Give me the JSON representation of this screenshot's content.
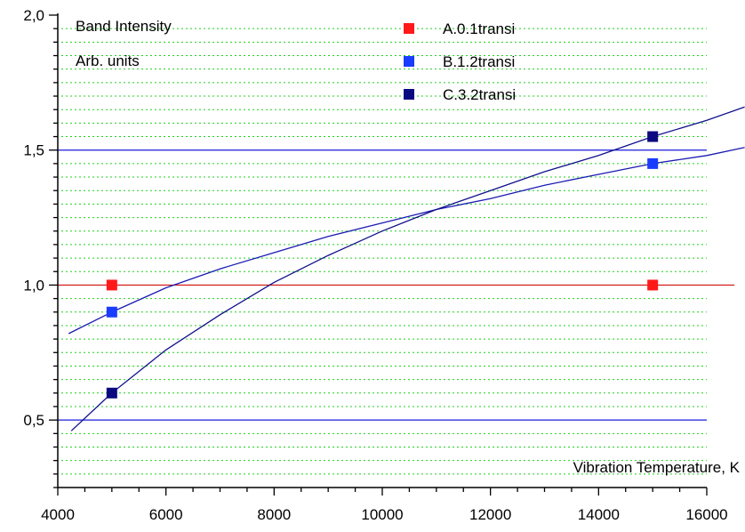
{
  "chart_data": {
    "type": "scatter",
    "xlim": [
      4000,
      16000
    ],
    "ylim": [
      0.25,
      2.0
    ],
    "x_ticks": [
      4000,
      6000,
      8000,
      10000,
      12000,
      14000,
      16000
    ],
    "x_tick_labels": [
      "4000",
      "6000",
      "8000",
      "10000",
      "12000",
      "14000",
      "16000"
    ],
    "y_ticks": [
      0.5,
      1.0,
      1.5,
      2.0
    ],
    "y_tick_labels": [
      "0,5",
      "1,0",
      "1,5",
      "2,0"
    ],
    "grid": "dotted green horizontal lines every 0.05",
    "legend_position": "top-center",
    "annotations": {
      "y_title_line1": "Band Intensity",
      "y_title_line2": "Arb. units",
      "x_title": "Vibration Temperature, K"
    },
    "reference_lines": [
      {
        "y": 0.5,
        "color": "#1a1adc"
      },
      {
        "y": 1.0,
        "color": "#d01010"
      },
      {
        "y": 1.5,
        "color": "#1a1adc"
      }
    ],
    "series": [
      {
        "name": "A.0.1transi",
        "color": "#ff1a1a",
        "points": [
          {
            "x": 5000,
            "y": 1.0
          },
          {
            "x": 15000,
            "y": 1.0
          }
        ]
      },
      {
        "name": "B.1.2transi",
        "color": "#1a3cff",
        "points": [
          {
            "x": 5000,
            "y": 0.9
          },
          {
            "x": 15000,
            "y": 1.45
          }
        ]
      },
      {
        "name": "C.3.2transi",
        "color": "#0a0a80",
        "points": [
          {
            "x": 5000,
            "y": 0.6
          },
          {
            "x": 15000,
            "y": 1.55
          }
        ]
      }
    ],
    "curves": [
      {
        "series": "B.1.2transi",
        "color": "#1a1ab4",
        "points": [
          [
            4200,
            0.82
          ],
          [
            5000,
            0.9
          ],
          [
            6000,
            0.99
          ],
          [
            7000,
            1.06
          ],
          [
            8000,
            1.12
          ],
          [
            9000,
            1.18
          ],
          [
            10000,
            1.23
          ],
          [
            11000,
            1.28
          ],
          [
            12000,
            1.32
          ],
          [
            13000,
            1.37
          ],
          [
            14000,
            1.41
          ],
          [
            15000,
            1.45
          ],
          [
            16000,
            1.48
          ],
          [
            16700,
            1.51
          ]
        ]
      },
      {
        "series": "C.3.2transi",
        "color": "#10108c",
        "points": [
          [
            4250,
            0.46
          ],
          [
            5000,
            0.6
          ],
          [
            6000,
            0.76
          ],
          [
            7000,
            0.89
          ],
          [
            8000,
            1.01
          ],
          [
            9000,
            1.11
          ],
          [
            10000,
            1.2
          ],
          [
            11000,
            1.28
          ],
          [
            12000,
            1.35
          ],
          [
            13000,
            1.42
          ],
          [
            14000,
            1.48
          ],
          [
            15000,
            1.55
          ],
          [
            16000,
            1.61
          ],
          [
            16700,
            1.66
          ]
        ]
      }
    ]
  }
}
